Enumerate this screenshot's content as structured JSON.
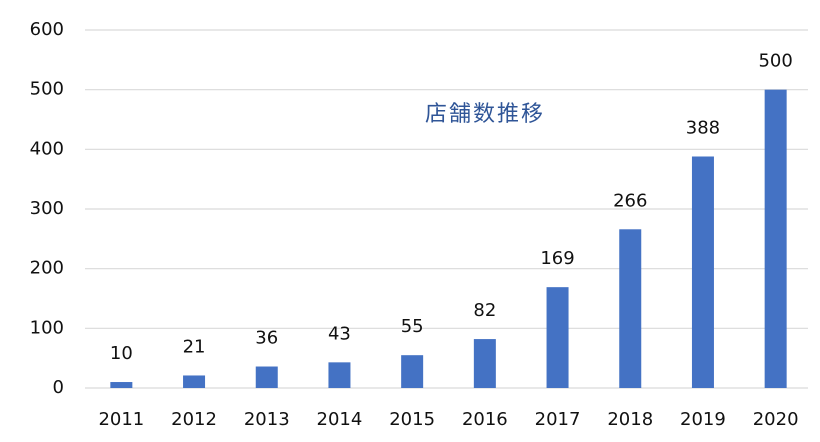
{
  "chart_data": {
    "type": "bar",
    "title": "店舗数推移",
    "categories": [
      "2011",
      "2012",
      "2013",
      "2014",
      "2015",
      "2016",
      "2017",
      "2018",
      "2019",
      "2020"
    ],
    "values": [
      10,
      21,
      36,
      43,
      55,
      82,
      169,
      266,
      388,
      500
    ],
    "color": "#4472c4",
    "ylim": [
      0,
      600
    ],
    "yticks": [
      0,
      100,
      200,
      300,
      400,
      500,
      600
    ],
    "grid": true
  }
}
